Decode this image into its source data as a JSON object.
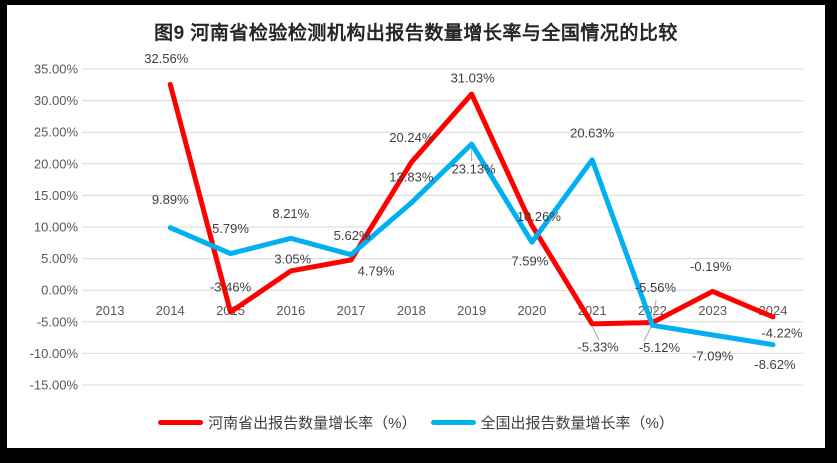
{
  "chart_data": {
    "type": "line",
    "title": "图9  河南省检验检测机构出报告数量增长率与全国情况的比较",
    "categories": [
      "2013",
      "2014",
      "2015",
      "2016",
      "2017",
      "2018",
      "2019",
      "2020",
      "2021",
      "2022",
      "2023",
      "2024"
    ],
    "series": [
      {
        "name": "河南省出报告数量增长率（%）",
        "color": "#FF0000",
        "values": [
          null,
          32.56,
          -3.46,
          3.05,
          4.79,
          20.24,
          31.03,
          10.26,
          -5.33,
          -5.12,
          -0.19,
          -4.22
        ],
        "data_labels": [
          "",
          "32.56%",
          "-3.46%",
          "3.05%",
          "4.79%",
          "20.24%",
          "31.03%",
          "10.26%",
          "-5.33%",
          "-5.12%",
          "-0.19%",
          "-4.22%"
        ]
      },
      {
        "name": "全国出报告数量增长率（%）",
        "color": "#00B0F0",
        "values": [
          null,
          9.89,
          5.79,
          8.21,
          5.62,
          13.83,
          23.13,
          7.59,
          20.63,
          -5.56,
          -7.09,
          -8.62
        ],
        "data_labels": [
          "",
          "9.89%",
          "5.79%",
          "8.21%",
          "5.62%",
          "13.83%",
          "23.13%",
          "7.59%",
          "20.63%",
          "-5.56%",
          "-7.09%",
          "-8.62%"
        ]
      }
    ],
    "y_axis": {
      "min": -15,
      "max": 35,
      "step": 5,
      "tick_labels": [
        "35.00%",
        "30.00%",
        "25.00%",
        "20.00%",
        "15.00%",
        "10.00%",
        "5.00%",
        "0.00%",
        "-5.00%",
        "-10.00%",
        "-15.00%"
      ]
    },
    "xlabel": "",
    "ylabel": "",
    "grid": true,
    "legend_position": "bottom",
    "styles": {
      "background": "#FFFFFF",
      "frame_border_color": "#000000",
      "gridline_color": "#D9D9D9",
      "axis_text_color": "#595959",
      "label_text_color": "#404040",
      "leader_color": "#A6A6A6"
    }
  }
}
